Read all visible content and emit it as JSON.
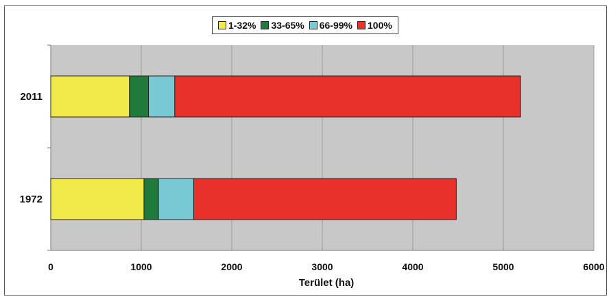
{
  "chart_data": {
    "type": "bar",
    "orientation": "horizontal",
    "stacked": true,
    "categories": [
      "2011",
      "1972"
    ],
    "series": [
      {
        "name": "1-32%",
        "color": "#f2ea4a",
        "values": [
          870,
          1030
        ]
      },
      {
        "name": "33-65%",
        "color": "#1f7a3c",
        "values": [
          210,
          160
        ]
      },
      {
        "name": "66-99%",
        "color": "#78c9d4",
        "values": [
          290,
          390
        ]
      },
      {
        "name": "100%",
        "color": "#e8312a",
        "values": [
          3820,
          2900
        ]
      }
    ],
    "xlabel": "Terület (ha)",
    "ylabel": "",
    "xlim": [
      0,
      6000
    ],
    "xticks": [
      "0",
      "1000",
      "2000",
      "3000",
      "4000",
      "5000",
      "6000"
    ],
    "grid": true,
    "legend_position": "top-center",
    "plot_background": "#c8c8c8"
  }
}
